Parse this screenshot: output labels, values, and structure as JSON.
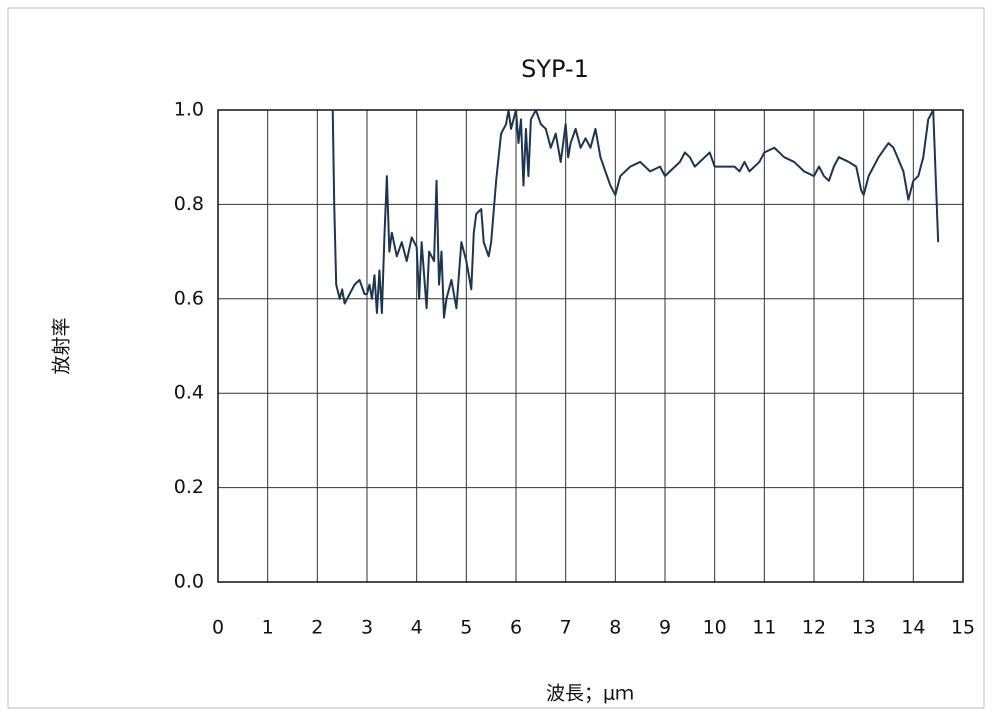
{
  "chart_data": {
    "type": "line",
    "title": "SYP-1",
    "x_label": "波長；μｍ",
    "y_label": "放射率",
    "xlim": [
      0,
      15
    ],
    "ylim": [
      0,
      1
    ],
    "grid": true,
    "xticks": [
      0,
      1,
      2,
      3,
      4,
      5,
      6,
      7,
      8,
      9,
      10,
      11,
      12,
      13,
      14,
      15
    ],
    "yticks": [
      {
        "value": 0,
        "label": "0.0"
      },
      0.2,
      0.4,
      0.6,
      0.8,
      {
        "value": 1,
        "label": "1.0"
      }
    ],
    "x": [
      2.31,
      2.34,
      2.38,
      2.45,
      2.5,
      2.55,
      2.65,
      2.75,
      2.85,
      2.95,
      3.0,
      3.05,
      3.1,
      3.15,
      3.2,
      3.25,
      3.3,
      3.35,
      3.4,
      3.45,
      3.5,
      3.6,
      3.7,
      3.8,
      3.9,
      4.0,
      4.05,
      4.1,
      4.2,
      4.25,
      4.35,
      4.4,
      4.45,
      4.5,
      4.55,
      4.6,
      4.7,
      4.8,
      4.9,
      5.0,
      5.1,
      5.15,
      5.2,
      5.3,
      5.35,
      5.45,
      5.5,
      5.6,
      5.7,
      5.8,
      5.85,
      5.9,
      6.0,
      6.05,
      6.1,
      6.15,
      6.2,
      6.25,
      6.3,
      6.4,
      6.5,
      6.6,
      6.7,
      6.8,
      6.9,
      7.0,
      7.05,
      7.1,
      7.2,
      7.3,
      7.4,
      7.5,
      7.6,
      7.7,
      7.8,
      7.9,
      8.0,
      8.1,
      8.3,
      8.5,
      8.7,
      8.9,
      9.0,
      9.1,
      9.3,
      9.4,
      9.5,
      9.6,
      9.8,
      9.9,
      10.0,
      10.2,
      10.4,
      10.5,
      10.6,
      10.7,
      10.9,
      11.0,
      11.2,
      11.4,
      11.6,
      11.8,
      12.0,
      12.1,
      12.2,
      12.3,
      12.4,
      12.5,
      12.7,
      12.85,
      12.95,
      13.0,
      13.1,
      13.3,
      13.5,
      13.6,
      13.8,
      13.9,
      14.0,
      14.1,
      14.2,
      14.3,
      14.4,
      14.5
    ],
    "series": [
      {
        "name": "SYP-1",
        "color": "#1e3552",
        "values": [
          1.0,
          0.8,
          0.63,
          0.6,
          0.62,
          0.59,
          0.61,
          0.63,
          0.64,
          0.61,
          0.61,
          0.63,
          0.6,
          0.65,
          0.57,
          0.66,
          0.57,
          0.73,
          0.86,
          0.7,
          0.74,
          0.69,
          0.72,
          0.68,
          0.73,
          0.71,
          0.6,
          0.72,
          0.58,
          0.7,
          0.68,
          0.85,
          0.63,
          0.7,
          0.56,
          0.6,
          0.64,
          0.58,
          0.72,
          0.68,
          0.62,
          0.74,
          0.78,
          0.79,
          0.72,
          0.69,
          0.72,
          0.85,
          0.95,
          0.97,
          1.0,
          0.96,
          1.0,
          0.93,
          0.98,
          0.84,
          0.96,
          0.86,
          0.98,
          1.0,
          0.97,
          0.96,
          0.92,
          0.95,
          0.89,
          0.97,
          0.9,
          0.93,
          0.96,
          0.92,
          0.94,
          0.92,
          0.96,
          0.9,
          0.87,
          0.84,
          0.82,
          0.86,
          0.88,
          0.89,
          0.87,
          0.88,
          0.86,
          0.87,
          0.89,
          0.91,
          0.9,
          0.88,
          0.9,
          0.91,
          0.88,
          0.88,
          0.88,
          0.87,
          0.89,
          0.87,
          0.89,
          0.91,
          0.92,
          0.9,
          0.89,
          0.87,
          0.86,
          0.88,
          0.86,
          0.85,
          0.88,
          0.9,
          0.89,
          0.88,
          0.83,
          0.82,
          0.86,
          0.9,
          0.93,
          0.92,
          0.87,
          0.81,
          0.85,
          0.86,
          0.9,
          0.98,
          1.0,
          0.72
        ]
      }
    ]
  }
}
